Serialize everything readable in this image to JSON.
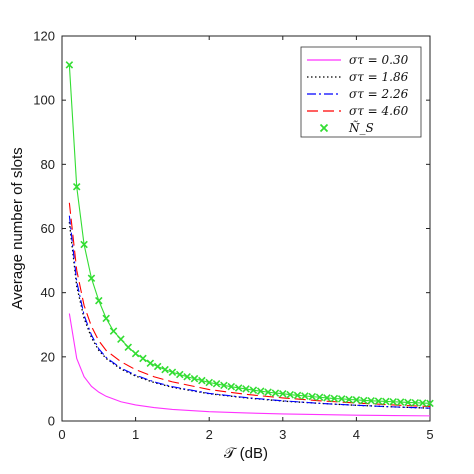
{
  "chart_data": {
    "type": "line",
    "xlabel": "𝒯 (dB)",
    "ylabel": "Average number of slots",
    "xlim": [
      0,
      5
    ],
    "ylim": [
      0,
      120
    ],
    "xticks": [
      "0",
      "1",
      "2",
      "3",
      "4",
      "5"
    ],
    "yticks": [
      "0",
      "20",
      "40",
      "60",
      "80",
      "100",
      "120"
    ],
    "legend_position": "top-right",
    "grid": false,
    "series": [
      {
        "name": "στ = 0.30",
        "style": "solid",
        "color": "#ff33ff",
        "x": [
          0.1,
          0.2,
          0.3,
          0.4,
          0.5,
          0.6,
          0.8,
          1.0,
          1.25,
          1.5,
          2.0,
          2.5,
          3.0,
          3.5,
          4.0,
          4.5,
          5.0
        ],
        "y": [
          33.5,
          19.5,
          13.8,
          10.8,
          9.0,
          7.7,
          6.0,
          5.0,
          4.2,
          3.6,
          2.9,
          2.5,
          2.2,
          2.0,
          1.8,
          1.7,
          1.6
        ]
      },
      {
        "name": "στ = 1.86",
        "style": "dotted",
        "color": "#000000",
        "x": [
          0.1,
          0.2,
          0.3,
          0.4,
          0.5,
          0.6,
          0.8,
          1.0,
          1.25,
          1.5,
          2.0,
          2.5,
          3.0,
          3.5,
          4.0,
          4.5,
          5.0
        ],
        "y": [
          62.0,
          42.0,
          32.0,
          26.0,
          22.0,
          19.5,
          16.2,
          14.0,
          12.0,
          10.5,
          8.5,
          7.2,
          6.2,
          5.5,
          4.9,
          4.4,
          4.0
        ]
      },
      {
        "name": "στ = 2.26",
        "style": "dashdot",
        "color": "#0000ff",
        "x": [
          0.1,
          0.2,
          0.3,
          0.4,
          0.5,
          0.6,
          0.8,
          1.0,
          1.25,
          1.5,
          2.0,
          2.5,
          3.0,
          3.5,
          4.0,
          4.5,
          5.0
        ],
        "y": [
          64.0,
          43.5,
          33.0,
          26.8,
          22.5,
          19.8,
          16.5,
          14.3,
          12.2,
          10.7,
          8.6,
          7.3,
          6.3,
          5.5,
          4.9,
          4.4,
          4.0
        ]
      },
      {
        "name": "στ = 4.60",
        "style": "dashed",
        "color": "#ff0000",
        "x": [
          0.1,
          0.2,
          0.3,
          0.4,
          0.5,
          0.6,
          0.8,
          1.0,
          1.25,
          1.5,
          2.0,
          2.5,
          3.0,
          3.5,
          4.0,
          4.5,
          5.0
        ],
        "y": [
          68.0,
          47.0,
          36.0,
          29.5,
          25.0,
          22.0,
          18.5,
          16.0,
          13.8,
          12.2,
          9.8,
          8.3,
          7.2,
          6.3,
          5.6,
          5.0,
          4.5
        ]
      },
      {
        "name": "Ñ_S",
        "style": "solid-markers",
        "marker": "x",
        "color": "#33dd33",
        "x": [
          0.1,
          0.2,
          0.3,
          0.4,
          0.5,
          0.6,
          0.7,
          0.8,
          0.9,
          1.0,
          1.1,
          1.2,
          1.3,
          1.4,
          1.5,
          1.6,
          1.7,
          1.8,
          1.9,
          2.0,
          2.1,
          2.2,
          2.3,
          2.4,
          2.5,
          2.6,
          2.7,
          2.8,
          2.9,
          3.0,
          3.1,
          3.2,
          3.3,
          3.4,
          3.5,
          3.6,
          3.7,
          3.8,
          3.9,
          4.0,
          4.1,
          4.2,
          4.3,
          4.4,
          4.5,
          4.6,
          4.7,
          4.8,
          4.9,
          5.0
        ],
        "y": [
          111.0,
          73.0,
          55.0,
          44.5,
          37.5,
          32.0,
          28.0,
          25.5,
          23.0,
          21.0,
          19.5,
          18.0,
          17.0,
          16.0,
          15.2,
          14.5,
          13.8,
          13.2,
          12.6,
          12.0,
          11.6,
          11.1,
          10.7,
          10.3,
          10.0,
          9.6,
          9.3,
          9.0,
          8.7,
          8.5,
          8.2,
          8.0,
          7.8,
          7.6,
          7.4,
          7.2,
          7.0,
          6.9,
          6.7,
          6.6,
          6.4,
          6.3,
          6.2,
          6.1,
          6.0,
          5.9,
          5.8,
          5.7,
          5.6,
          5.5
        ]
      }
    ]
  }
}
